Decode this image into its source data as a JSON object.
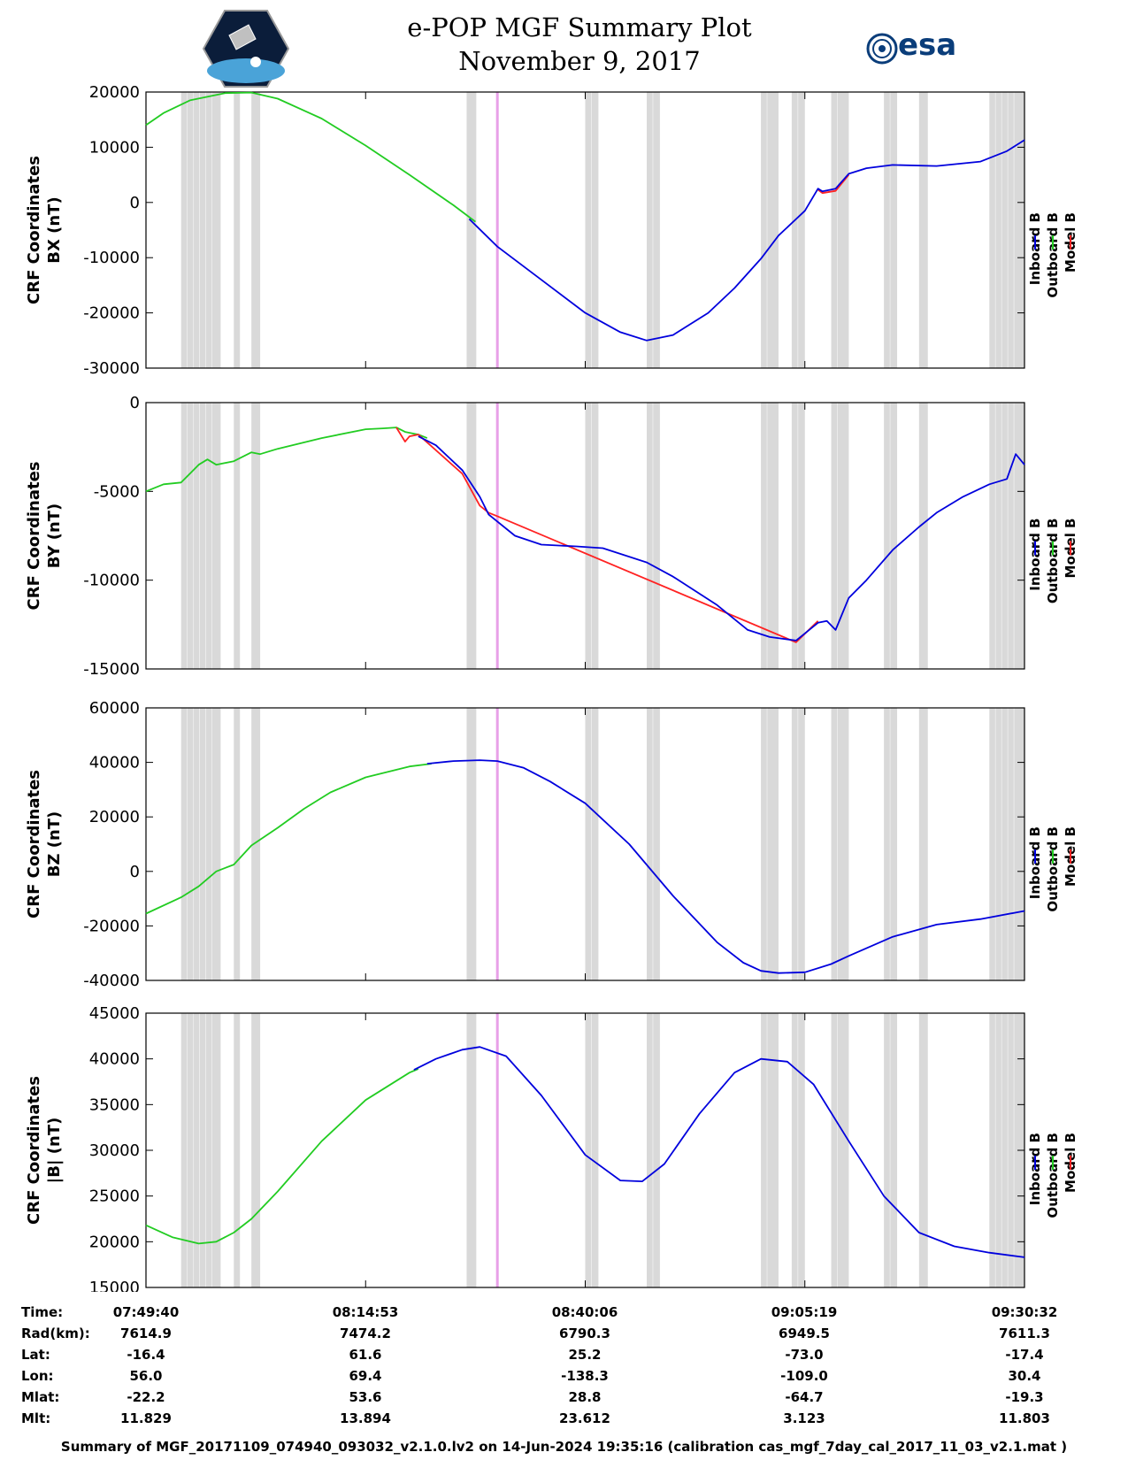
{
  "header": {
    "title_line1": "e-POP MGF Summary Plot",
    "title_line2": "November 9, 2017",
    "left_logo": "cassiope-mission-logo",
    "right_logo_text": "esa"
  },
  "legend": {
    "labels": [
      "Inboard B",
      "Outboard B",
      "Model B"
    ],
    "colors": [
      "#0000dd",
      "#22cc22",
      "#ff2222"
    ]
  },
  "colors": {
    "inboard": "#0000dd",
    "outboard": "#22cc22",
    "model": "#ff2222",
    "gap_band": "#d9d9d9",
    "marker": "#e8a0e8"
  },
  "info_table": {
    "labels": [
      "Time:",
      "Rad(km):",
      "Lat:",
      "Lon:",
      "Mlat:",
      "Mlt:"
    ],
    "columns": [
      [
        "07:49:40",
        "7614.9",
        "-16.4",
        "56.0",
        "-22.2",
        "11.829"
      ],
      [
        "08:14:53",
        "7474.2",
        "61.6",
        "69.4",
        "53.6",
        "13.894"
      ],
      [
        "08:40:06",
        "6790.3",
        "25.2",
        "-138.3",
        "28.8",
        "23.612"
      ],
      [
        "09:05:19",
        "6949.5",
        "-73.0",
        "-109.0",
        "-64.7",
        "3.123"
      ],
      [
        "09:30:32",
        "7611.3",
        "-17.4",
        "30.4",
        "-19.3",
        "11.803"
      ]
    ]
  },
  "footer": "Summary of MGF_20171109_074940_093032_v2.1.0.lv2 on 14-Jun-2024 19:35:16 (calibration cas_mgf_7day_cal_2017_11_03_v2.1.mat )",
  "chart_data": [
    {
      "type": "line",
      "ylabel_lines": [
        "CRF Coordinates",
        "BX (nT)"
      ],
      "ylim": [
        -30000,
        20000
      ],
      "yticks": [
        -30000,
        -20000,
        -10000,
        0,
        10000,
        20000
      ],
      "xlim": [
        0,
        100
      ],
      "xticks": [
        0,
        25,
        50,
        75,
        100
      ],
      "series": [
        {
          "name": "Outboard B",
          "x": [
            0,
            2,
            5,
            9,
            12,
            15,
            20,
            25,
            30,
            35,
            37.5
          ],
          "values": [
            14000,
            16200,
            18500,
            19800,
            19900,
            18800,
            15200,
            10300,
            5000,
            -500,
            -3500
          ]
        },
        {
          "name": "Inboard B",
          "x": [
            36.8,
            40,
            45,
            50,
            54,
            57,
            60,
            64,
            67,
            70,
            72,
            75,
            76.5,
            77,
            78.5,
            80,
            82,
            85,
            90,
            95,
            98,
            100
          ],
          "values": [
            -3000,
            -8000,
            -14000,
            -20000,
            -23500,
            -25000,
            -24000,
            -20000,
            -15500,
            -10200,
            -6000,
            -1500,
            2500,
            2000,
            2500,
            5200,
            6200,
            6800,
            6600,
            7400,
            9300,
            11300
          ]
        },
        {
          "name": "Model B",
          "x": [
            76.5,
            77,
            78.5,
            80
          ],
          "values": [
            2300,
            1700,
            2100,
            5000
          ]
        }
      ],
      "gap_bands": [
        [
          4,
          8.5
        ],
        [
          10,
          10.7
        ],
        [
          12,
          13
        ],
        [
          36.5,
          37.6
        ],
        [
          50,
          51.5
        ],
        [
          57,
          58.5
        ],
        [
          70,
          72
        ],
        [
          73.5,
          75
        ],
        [
          78,
          80
        ],
        [
          84,
          85.5
        ],
        [
          88,
          89
        ],
        [
          96,
          100
        ]
      ],
      "marker_x": 40
    },
    {
      "type": "line",
      "ylabel_lines": [
        "CRF Coordinates",
        "BY (nT)"
      ],
      "ylim": [
        -15000,
        0
      ],
      "yticks": [
        -15000,
        -10000,
        -5000,
        0
      ],
      "xlim": [
        0,
        100
      ],
      "xticks": [
        0,
        25,
        50,
        75,
        100
      ],
      "series": [
        {
          "name": "Outboard B",
          "x": [
            0,
            2,
            4,
            5,
            6,
            7,
            8,
            10,
            12,
            13,
            15,
            20,
            25,
            27,
            28.5,
            29.5,
            31,
            32
          ],
          "values": [
            -5000,
            -4600,
            -4500,
            -4000,
            -3500,
            -3200,
            -3500,
            -3300,
            -2800,
            -2900,
            -2600,
            -2000,
            -1500,
            -1450,
            -1400,
            -1650,
            -1800,
            -2000
          ]
        },
        {
          "name": "Inboard B",
          "x": [
            31,
            33,
            36,
            38,
            39,
            42,
            45,
            49,
            52,
            57,
            60,
            65,
            68.5,
            71,
            74,
            76.5,
            77.5,
            78.5,
            80,
            82,
            85,
            88,
            90,
            93,
            96,
            98,
            99,
            100
          ],
          "values": [
            -1900,
            -2400,
            -3800,
            -5300,
            -6300,
            -7500,
            -8000,
            -8100,
            -8200,
            -9000,
            -9800,
            -11400,
            -12800,
            -13200,
            -13400,
            -12400,
            -12300,
            -12800,
            -11000,
            -10000,
            -8300,
            -7000,
            -6200,
            -5300,
            -4600,
            -4300,
            -2900,
            -3500
          ]
        },
        {
          "name": "Model B",
          "x": [
            28.5,
            29.5,
            30,
            31,
            36,
            38,
            39,
            40,
            74,
            76.5
          ],
          "values": [
            -1400,
            -2200,
            -1900,
            -1800,
            -4000,
            -5800,
            -6200,
            -6400,
            -13500,
            -12300
          ]
        }
      ],
      "gap_bands": [
        [
          4,
          8.5
        ],
        [
          10,
          10.7
        ],
        [
          12,
          13
        ],
        [
          36.5,
          37.6
        ],
        [
          50,
          51.5
        ],
        [
          57,
          58.5
        ],
        [
          70,
          72
        ],
        [
          73.5,
          75
        ],
        [
          78,
          80
        ],
        [
          84,
          85.5
        ],
        [
          88,
          89
        ],
        [
          96,
          100
        ]
      ],
      "marker_x": 40
    },
    {
      "type": "line",
      "ylabel_lines": [
        "CRF Coordinates",
        "BZ (nT)"
      ],
      "ylim": [
        -40000,
        60000
      ],
      "yticks": [
        -40000,
        -20000,
        0,
        20000,
        40000,
        60000
      ],
      "xlim": [
        0,
        100
      ],
      "xticks": [
        0,
        25,
        50,
        75,
        100
      ],
      "series": [
        {
          "name": "Outboard B",
          "x": [
            0,
            4,
            6,
            8,
            10,
            12,
            15,
            18,
            21,
            25,
            30,
            32.5
          ],
          "values": [
            -15500,
            -9500,
            -5500,
            0,
            2500,
            9500,
            16000,
            23000,
            29000,
            34500,
            38500,
            39500
          ]
        },
        {
          "name": "Inboard B",
          "x": [
            32,
            35,
            38,
            40,
            43,
            46,
            50,
            55,
            60,
            65,
            68,
            70,
            72,
            75,
            78,
            80,
            85,
            90,
            95,
            100
          ],
          "values": [
            39500,
            40500,
            40800,
            40500,
            38000,
            33000,
            25000,
            10000,
            -9000,
            -26000,
            -33500,
            -36500,
            -37300,
            -37000,
            -34000,
            -31000,
            -24000,
            -19500,
            -17500,
            -14500
          ]
        },
        {
          "name": "Model B",
          "x": [],
          "values": []
        }
      ],
      "gap_bands": [
        [
          4,
          8.5
        ],
        [
          10,
          10.7
        ],
        [
          12,
          13
        ],
        [
          36.5,
          37.6
        ],
        [
          50,
          51.5
        ],
        [
          57,
          58.5
        ],
        [
          70,
          72
        ],
        [
          73.5,
          75
        ],
        [
          78,
          80
        ],
        [
          84,
          85.5
        ],
        [
          88,
          89
        ],
        [
          96,
          100
        ]
      ],
      "marker_x": 40
    },
    {
      "type": "line",
      "ylabel_lines": [
        "CRF Coordinates",
        "|B| (nT)"
      ],
      "ylim": [
        15000,
        45000
      ],
      "yticks": [
        15000,
        20000,
        25000,
        30000,
        35000,
        40000,
        45000
      ],
      "xlim": [
        0,
        100
      ],
      "xticks": [
        0,
        25,
        50,
        75,
        100
      ],
      "series": [
        {
          "name": "Outboard B",
          "x": [
            0,
            3,
            6,
            8,
            10,
            12,
            15,
            20,
            25,
            30,
            31
          ],
          "values": [
            21800,
            20500,
            19800,
            20000,
            21000,
            22500,
            25500,
            31000,
            35500,
            38500,
            38900
          ]
        },
        {
          "name": "Inboard B",
          "x": [
            30.5,
            33,
            36,
            38,
            41,
            45,
            50,
            54,
            56.5,
            59,
            63,
            67,
            70,
            73,
            76,
            80,
            84,
            88,
            92,
            96,
            100
          ],
          "values": [
            38800,
            40000,
            41000,
            41300,
            40300,
            36000,
            29500,
            26700,
            26600,
            28500,
            34000,
            38500,
            40000,
            39700,
            37200,
            31000,
            25000,
            21000,
            19500,
            18800,
            18300
          ]
        },
        {
          "name": "Model B",
          "x": [],
          "values": []
        }
      ],
      "gap_bands": [
        [
          4,
          8.5
        ],
        [
          10,
          10.7
        ],
        [
          12,
          13
        ],
        [
          36.5,
          37.6
        ],
        [
          50,
          51.5
        ],
        [
          57,
          58.5
        ],
        [
          70,
          72
        ],
        [
          73.5,
          75
        ],
        [
          78,
          80
        ],
        [
          84,
          85.5
        ],
        [
          88,
          89
        ],
        [
          96,
          100
        ]
      ],
      "marker_x": 40
    }
  ]
}
